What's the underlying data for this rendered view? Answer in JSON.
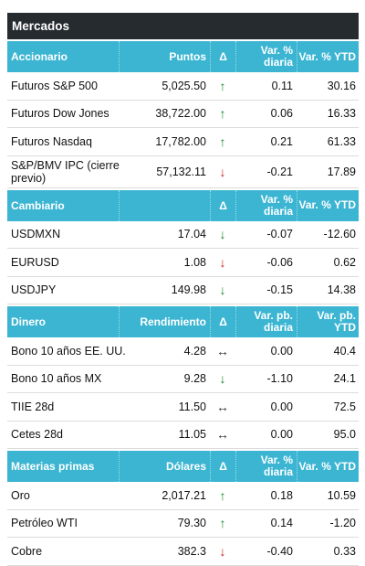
{
  "title": "Mercados",
  "sections": [
    {
      "header": {
        "name": "Accionario",
        "value": "Puntos",
        "delta": "Δ",
        "daily": "Var. % diaria",
        "ytd": "Var. % YTD"
      },
      "rows": [
        {
          "name": "Futuros S&P 500",
          "value": "5,025.50",
          "arrow": "↑",
          "dir": "up",
          "daily": "0.11",
          "ytd": "30.16"
        },
        {
          "name": "Futuros Dow Jones",
          "value": "38,722.00",
          "arrow": "↑",
          "dir": "up",
          "daily": "0.06",
          "ytd": "16.33"
        },
        {
          "name": "Futuros Nasdaq",
          "value": "17,782.00",
          "arrow": "↑",
          "dir": "up",
          "daily": "0.21",
          "ytd": "61.33"
        },
        {
          "name": "S&P/BMV IPC (cierre previo)",
          "value": "57,132.11",
          "arrow": "↓",
          "dir": "down",
          "daily": "-0.21",
          "ytd": "17.89"
        }
      ]
    },
    {
      "header": {
        "name": "Cambiario",
        "value": "",
        "delta": "Δ",
        "daily": "Var. % diaria",
        "ytd": "Var. % YTD"
      },
      "rows": [
        {
          "name": "USDMXN",
          "value": "17.04",
          "arrow": "↓",
          "dir": "up",
          "daily": "-0.07",
          "ytd": "-12.60"
        },
        {
          "name": "EURUSD",
          "value": "1.08",
          "arrow": "↓",
          "dir": "down",
          "daily": "-0.06",
          "ytd": "0.62"
        },
        {
          "name": "USDJPY",
          "value": "149.98",
          "arrow": "↓",
          "dir": "up",
          "daily": "-0.15",
          "ytd": "14.38"
        }
      ]
    },
    {
      "header": {
        "name": "Dinero",
        "value": "Rendimiento",
        "delta": "Δ",
        "daily": "Var. pb. diaria",
        "ytd": "Var. pb. YTD"
      },
      "rows": [
        {
          "name": "Bono 10 años EE. UU.",
          "value": "4.28",
          "arrow": "↔",
          "dir": "flat",
          "daily": "0.00",
          "ytd": "40.4"
        },
        {
          "name": "Bono 10 años MX",
          "value": "9.28",
          "arrow": "↓",
          "dir": "up",
          "daily": "-1.10",
          "ytd": "24.1"
        },
        {
          "name": "TIIE 28d",
          "value": "11.50",
          "arrow": "↔",
          "dir": "flat",
          "daily": "0.00",
          "ytd": "72.5"
        },
        {
          "name": "Cetes 28d",
          "value": "11.05",
          "arrow": "↔",
          "dir": "flat",
          "daily": "0.00",
          "ytd": "95.0"
        }
      ]
    },
    {
      "header": {
        "name": "Materias primas",
        "value": "Dólares",
        "delta": "Δ",
        "daily": "Var. % diaria",
        "ytd": "Var. % YTD"
      },
      "rows": [
        {
          "name": "Oro",
          "value": "2,017.21",
          "arrow": "↑",
          "dir": "up",
          "daily": "0.18",
          "ytd": "10.59"
        },
        {
          "name": "Petróleo WTI",
          "value": "79.30",
          "arrow": "↑",
          "dir": "up",
          "daily": "0.14",
          "ytd": "-1.20"
        },
        {
          "name": "Cobre",
          "value": "382.3",
          "arrow": "↓",
          "dir": "down",
          "daily": "-0.40",
          "ytd": "0.33"
        }
      ]
    }
  ],
  "colors": {
    "title_bg": "#262b30",
    "header_bg": "#3cb5d2",
    "up": "#17872a",
    "down": "#c81e1e"
  }
}
